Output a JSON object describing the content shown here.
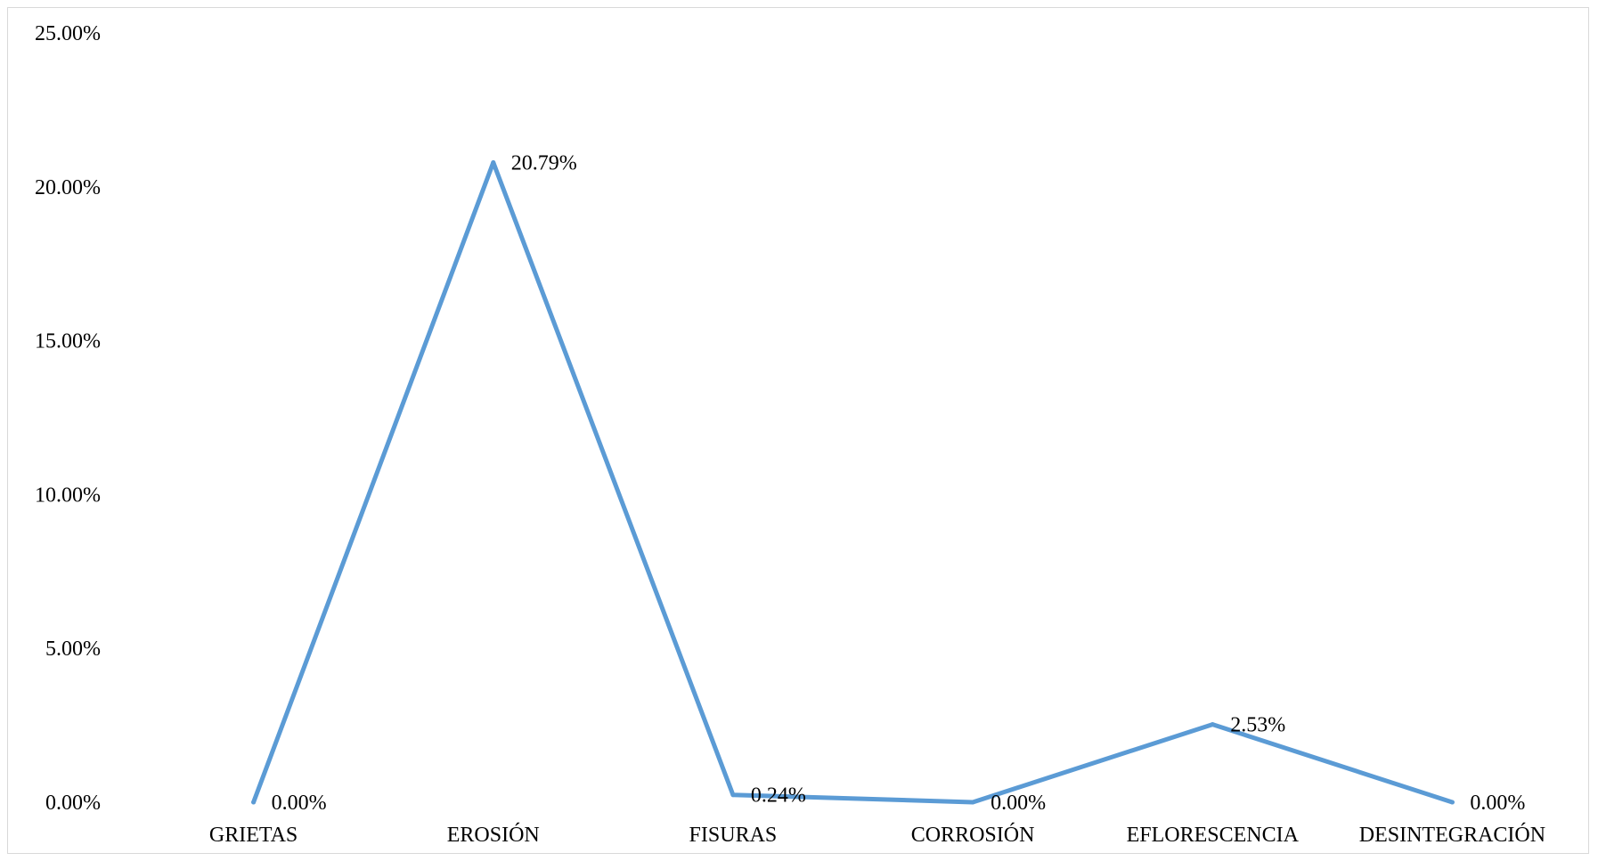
{
  "chart_data": {
    "type": "line",
    "categories": [
      "GRIETAS",
      "EROSIÓN",
      "FISURAS",
      "CORROSIÓN",
      "EFLORESCENCIA",
      "DESINTEGRACIÓN"
    ],
    "values": [
      0.0,
      20.79,
      0.24,
      0.0,
      2.53,
      0.0
    ],
    "data_labels": [
      "0.00%",
      "20.79%",
      "0.24%",
      "0.00%",
      "2.53%",
      "0.00%"
    ],
    "y_ticks": [
      0,
      5,
      10,
      15,
      20,
      25
    ],
    "y_tick_labels": [
      "0.00%",
      "5.00%",
      "10.00%",
      "15.00%",
      "20.00%",
      "25.00%"
    ],
    "ylim": [
      0,
      25
    ],
    "title": "",
    "xlabel": "",
    "ylabel": "",
    "grid": false,
    "legend": "none",
    "line_color": "#5b9bd5"
  }
}
